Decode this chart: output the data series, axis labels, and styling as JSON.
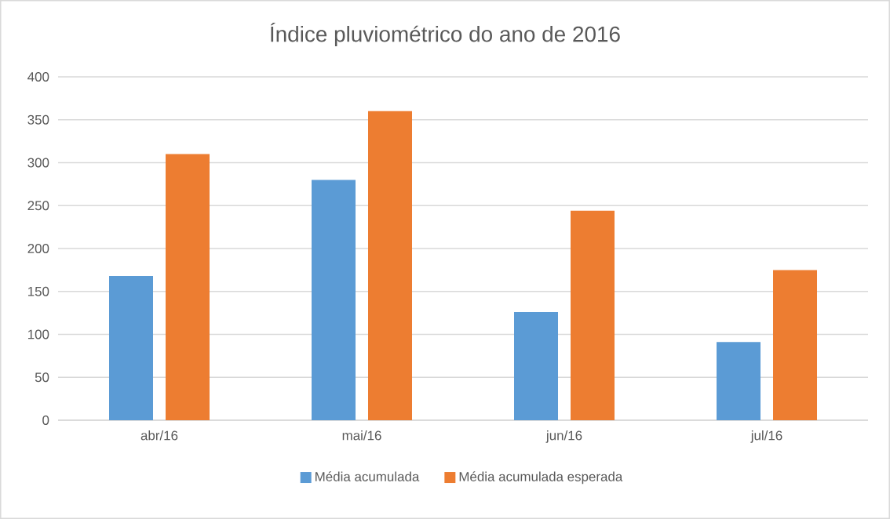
{
  "chart_data": {
    "type": "bar",
    "title": "Índice pluviométrico do ano de 2016",
    "categories": [
      "abr/16",
      "mai/16",
      "jun/16",
      "jul/16"
    ],
    "series": [
      {
        "name": "Média acumulada",
        "color": "#5b9bd5",
        "values": [
          168,
          280,
          126,
          91
        ]
      },
      {
        "name": "Média acumulada esperada",
        "color": "#ed7d31",
        "values": [
          310,
          360,
          244,
          175
        ]
      }
    ],
    "ylim": [
      0,
      400
    ],
    "yticks": [
      0,
      50,
      100,
      150,
      200,
      250,
      300,
      350,
      400
    ],
    "grid": "y",
    "legend": "bottom"
  }
}
